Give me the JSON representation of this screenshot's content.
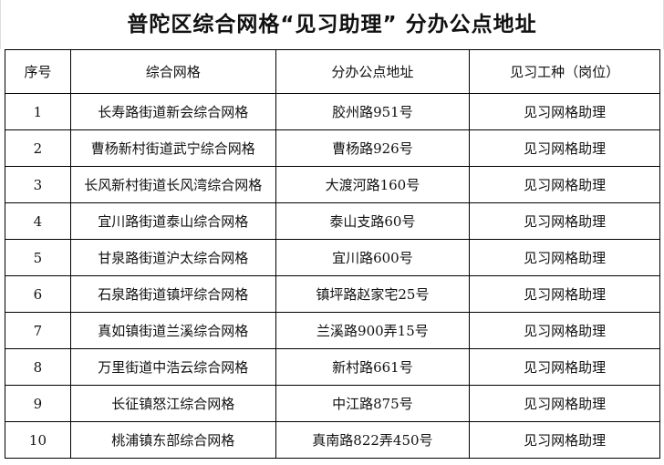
{
  "title": "普陀区综合网格“见习助理” 分办公点地址",
  "table": {
    "headers": [
      "序号",
      "综合网格",
      "分办公点地址",
      "见习工种（岗位）"
    ],
    "rows": [
      [
        "1",
        "长寿路街道新会综合网格",
        "胶州路951号",
        "见习网格助理"
      ],
      [
        "2",
        "曹杨新村街道武宁综合网格",
        "曹杨路926号",
        "见习网格助理"
      ],
      [
        "3",
        "长风新村街道长风湾综合网格",
        "大渡河路160号",
        "见习网格助理"
      ],
      [
        "4",
        "宜川路街道泰山综合网格",
        "泰山支路60号",
        "见习网格助理"
      ],
      [
        "5",
        "甘泉路街道沪太综合网格",
        "宜川路600号",
        "见习网格助理"
      ],
      [
        "6",
        "石泉路街道镇坪综合网格",
        "镇坪路赵家宅25号",
        "见习网格助理"
      ],
      [
        "7",
        "真如镇街道兰溪综合网格",
        "兰溪路900弄15号",
        "见习网格助理"
      ],
      [
        "8",
        "万里街道中浩云综合网格",
        "新村路661号",
        "见习网格助理"
      ],
      [
        "9",
        "长征镇怒江综合网格",
        "中江路875号",
        "见习网格助理"
      ],
      [
        "10",
        "桃浦镇东部综合网格",
        "真南路822弄450号",
        "见习网格助理"
      ]
    ]
  }
}
